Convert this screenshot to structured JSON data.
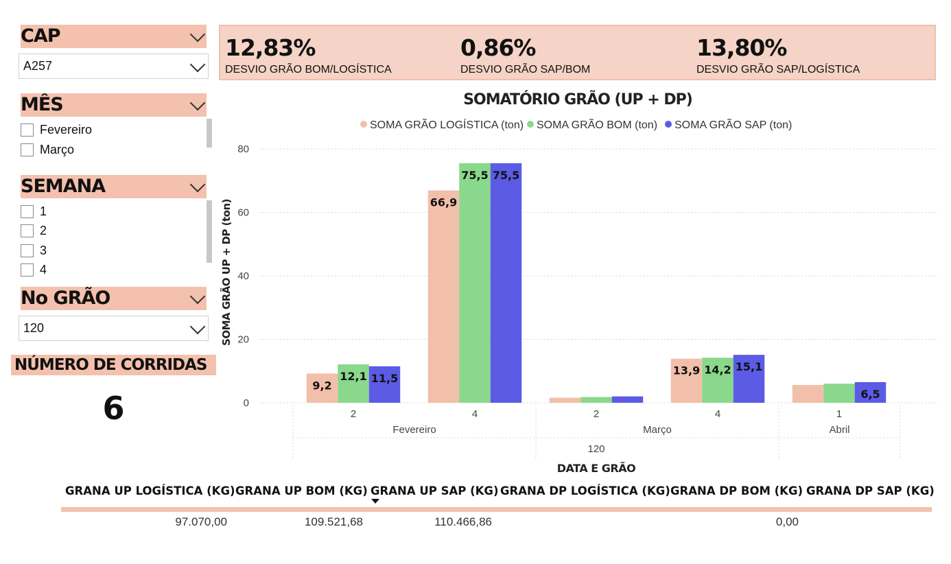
{
  "slicers": {
    "cap": {
      "title": "CAP",
      "selected": "A257"
    },
    "mes": {
      "title": "MÊS",
      "options": [
        "Fevereiro",
        "Março"
      ]
    },
    "semana": {
      "title": "SEMANA",
      "options": [
        "1",
        "2",
        "3",
        "4"
      ]
    },
    "no_grao": {
      "title": "No GRÃO",
      "selected": "120"
    }
  },
  "corridas": {
    "title": "NÚMERO DE CORRIDAS",
    "value": "6"
  },
  "kpis": [
    {
      "value": "12,83%",
      "label": "DESVIO GRÃO BOM/LOGÍSTICA"
    },
    {
      "value": "0,86%",
      "label": "DESVIO GRÃO SAP/BOM"
    },
    {
      "value": "13,80%",
      "label": "DESVIO GRÃO SAP/LOGÍSTICA"
    }
  ],
  "chart_data": {
    "type": "bar",
    "title": "SOMATÓRIO GRÃO (UP + DP)",
    "xlabel": "DATA E GRÃO",
    "ylabel": "SOMA GRÃO UP + DP (ton)",
    "ylim": [
      0,
      80
    ],
    "yticks": [
      "0",
      "20",
      "40",
      "60",
      "80"
    ],
    "grid": true,
    "legend_position": "top",
    "categories": [
      "2",
      "4",
      "2",
      "4",
      "1"
    ],
    "month_groups": [
      {
        "label": "Fevereiro",
        "span": 2
      },
      {
        "label": "Março",
        "span": 2
      },
      {
        "label": "Abril",
        "span": 1
      }
    ],
    "grain_group": "120",
    "series": [
      {
        "name": "SOMA GRÃO LOGÍSTICA (ton)",
        "color": "#f2bfaa",
        "values": [
          9.2,
          66.9,
          1.6,
          13.9,
          5.6
        ],
        "labels": [
          "9,2",
          "66,9",
          "",
          "13,9",
          ""
        ]
      },
      {
        "name": "SOMA GRÃO BOM (ton)",
        "color": "#8ad88b",
        "values": [
          12.1,
          75.5,
          1.8,
          14.2,
          6.0
        ],
        "labels": [
          "12,1",
          "75,5",
          "",
          "14,2",
          ""
        ]
      },
      {
        "name": "SOMA GRÃO SAP (ton)",
        "color": "#5b5be6",
        "values": [
          11.5,
          75.5,
          2.0,
          15.1,
          6.5
        ],
        "labels": [
          "11,5",
          "75,5",
          "",
          "15,1",
          "6,5"
        ]
      }
    ]
  },
  "table": {
    "headers": [
      "GRANA UP LOGÍSTICA (KG)",
      "GRANA UP BOM (KG)",
      "GRANA UP SAP (KG)",
      "GRANA DP LOGÍSTICA (KG)",
      "GRANA DP BOM (KG)",
      "GRANA DP SAP (KG)"
    ],
    "row": [
      "97.070,00",
      "109.521,68",
      "110.466,86",
      "",
      "0,00",
      ""
    ],
    "sort_icon": "sort-descending-icon",
    "accent": "#f3c1ad"
  }
}
